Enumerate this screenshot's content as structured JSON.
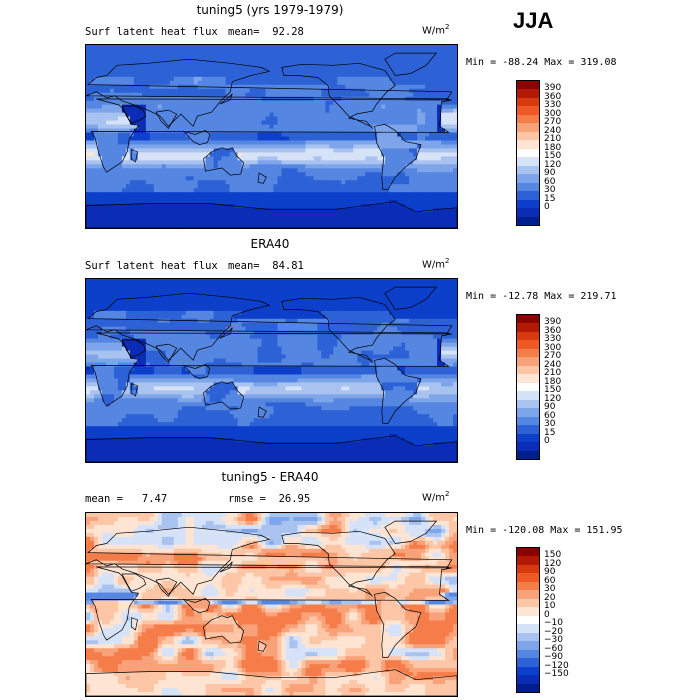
{
  "season": "JJA",
  "panels": [
    {
      "title": "tuning5 (yrs 1979-1979)",
      "left_text": "Surf latent heat flux",
      "mean_text": "mean=  92.28",
      "units_main": "W/m",
      "units_exp": "2",
      "minmax": "Min = -88.24 Max = 319.08",
      "colorbar_ticks": [
        "390",
        "360",
        "330",
        "300",
        "270",
        "240",
        "210",
        "180",
        "150",
        "120",
        "90",
        "60",
        "30",
        "15",
        "0"
      ],
      "colorbar_colors": [
        "#8b0000",
        "#b21a06",
        "#d73a0e",
        "#ee5a26",
        "#f57d4a",
        "#f9a27a",
        "#fcc6a7",
        "#fde4d3",
        "#ffffff",
        "#d6e2f7",
        "#a9c3f0",
        "#7ea4ea",
        "#5486e2",
        "#2d62d6",
        "#0c3fca",
        "#0a2cb6",
        "#001e8e"
      ],
      "field": "model"
    },
    {
      "title": "ERA40",
      "left_text": "Surf latent heat flux",
      "mean_text": "mean=  84.81",
      "units_main": "W/m",
      "units_exp": "2",
      "minmax": "Min = -12.78 Max = 219.71",
      "colorbar_ticks": [
        "390",
        "360",
        "330",
        "300",
        "270",
        "240",
        "210",
        "180",
        "150",
        "120",
        "90",
        "60",
        "30",
        "15",
        "0"
      ],
      "colorbar_colors": [
        "#8b0000",
        "#b21a06",
        "#d73a0e",
        "#ee5a26",
        "#f57d4a",
        "#f9a27a",
        "#fcc6a7",
        "#fde4d3",
        "#ffffff",
        "#d6e2f7",
        "#a9c3f0",
        "#7ea4ea",
        "#5486e2",
        "#2d62d6",
        "#0c3fca",
        "#0a2cb6",
        "#001e8e"
      ],
      "field": "obs"
    },
    {
      "title": "tuning5 - ERA40",
      "left_text": "mean =   7.47",
      "mean_text": "rmse =  26.95",
      "units_main": "W/m",
      "units_exp": "2",
      "minmax": "Min = -120.08 Max = 151.95",
      "colorbar_ticks": [
        "150",
        "120",
        "90",
        "60",
        "30",
        "20",
        "10",
        "0",
        "−10",
        "−20",
        "−30",
        "−60",
        "−90",
        "−120",
        "−150"
      ],
      "colorbar_colors": [
        "#8b0000",
        "#b21a06",
        "#d73a0e",
        "#ee5a26",
        "#f57d4a",
        "#f9a27a",
        "#fcc6a7",
        "#fde4d3",
        "#ffffff",
        "#d6e2f7",
        "#a9c3f0",
        "#7ea4ea",
        "#5486e2",
        "#2d62d6",
        "#0c3fca",
        "#0a2cb6",
        "#001e8e"
      ],
      "field": "diff"
    }
  ],
  "chart_data": [
    {
      "type": "heatmap",
      "title": "tuning5 (yrs 1979-1979)",
      "variable": "Surf latent heat flux",
      "units": "W/m2",
      "mean": 92.28,
      "min": -88.24,
      "max": 319.08,
      "levels": [
        0,
        15,
        30,
        60,
        90,
        120,
        150,
        180,
        210,
        240,
        270,
        300,
        330,
        360,
        390
      ]
    },
    {
      "type": "heatmap",
      "title": "ERA40",
      "variable": "Surf latent heat flux",
      "units": "W/m2",
      "mean": 84.81,
      "min": -12.78,
      "max": 219.71,
      "levels": [
        0,
        15,
        30,
        60,
        90,
        120,
        150,
        180,
        210,
        240,
        270,
        300,
        330,
        360,
        390
      ]
    },
    {
      "type": "heatmap",
      "title": "tuning5 - ERA40",
      "units": "W/m2",
      "mean": 7.47,
      "rmse": 26.95,
      "min": -120.08,
      "max": 151.95,
      "levels": [
        -150,
        -120,
        -90,
        -60,
        -30,
        -20,
        -10,
        0,
        10,
        20,
        30,
        60,
        90,
        120,
        150
      ]
    }
  ]
}
